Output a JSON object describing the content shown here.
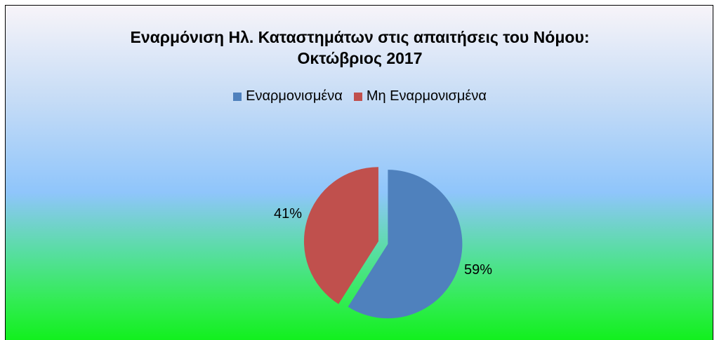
{
  "chart_data": {
    "type": "pie",
    "title_line1": "Εναρμόνιση Ηλ. Καταστημάτων στις απαιτήσεις του Νόμου:",
    "title_line2": "Οκτώβριος 2017",
    "legend_position": "top",
    "exploded": true,
    "slices": [
      {
        "label": "Εναρμονισμένα",
        "value": 59,
        "value_label": "59%",
        "color": "#4f81bd"
      },
      {
        "label": "Μη Εναρμονισμένα",
        "value": 41,
        "value_label": "41%",
        "color": "#c0504d"
      }
    ]
  }
}
